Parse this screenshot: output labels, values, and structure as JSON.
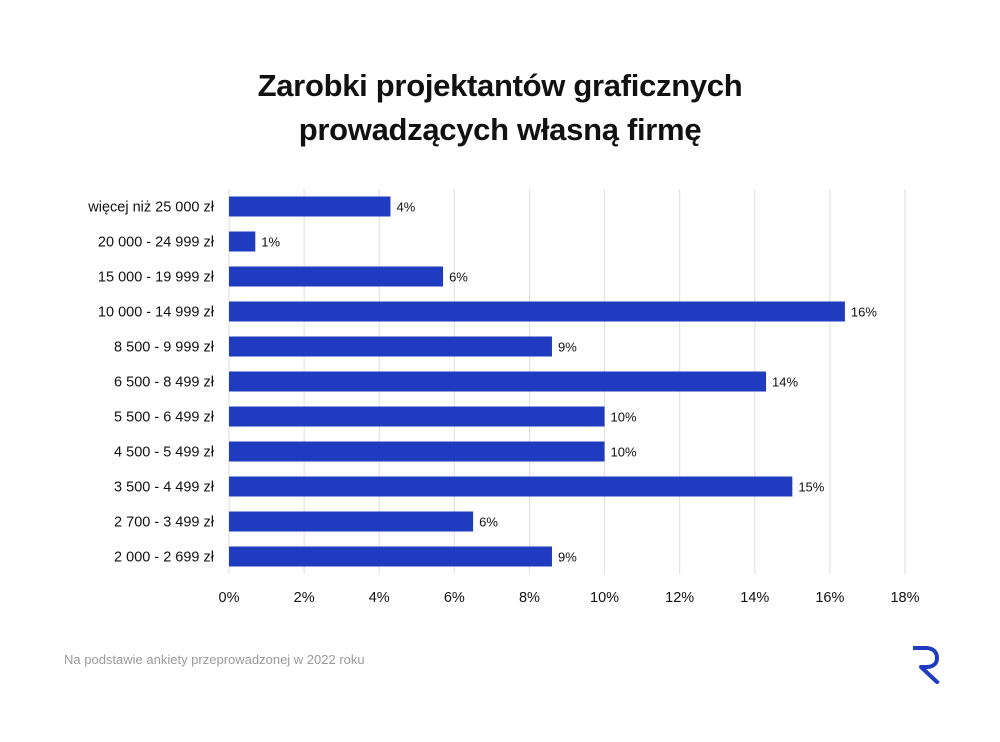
{
  "title_line1": "Zarobki projektantów graficznych",
  "title_line2": "prowadzących własną firmę",
  "footnote": "Na podstawie ankiety przeprowadzonej w 2022 roku",
  "colors": {
    "bar": "#1f3bbf",
    "grid": "#dedede",
    "logo": "#1f3bbf"
  },
  "logo_icon": "r-logo-icon",
  "chart_data": {
    "type": "bar",
    "orientation": "horizontal",
    "categories": [
      "więcej niż 25 000 zł",
      "20 000 - 24 999 zł",
      "15 000 - 19 999 zł",
      "10 000 - 14 999 zł",
      "8 500 - 9 999 zł",
      "6 500 - 8 499 zł",
      "5 500 - 6 499 zł",
      "4 500 - 5 499 zł",
      "3 500 - 4 499 zł",
      "2 700 - 3 499 zł",
      "2 000 - 2 699 zł"
    ],
    "values": [
      4.3,
      0.7,
      5.7,
      16.4,
      8.6,
      14.3,
      10,
      10,
      15,
      6.5,
      8.6
    ],
    "value_labels": [
      "4%",
      "1%",
      "6%",
      "16%",
      "9%",
      "14%",
      "10%",
      "10%",
      "15%",
      "6%",
      "9%"
    ],
    "xlim": [
      0,
      18
    ],
    "xticks": [
      0,
      2,
      4,
      6,
      8,
      10,
      12,
      14,
      16,
      18
    ],
    "xtick_labels": [
      "0%",
      "2%",
      "4%",
      "6%",
      "8%",
      "10%",
      "12%",
      "14%",
      "16%",
      "18%"
    ],
    "grid": true,
    "xlabel": "",
    "ylabel": ""
  }
}
